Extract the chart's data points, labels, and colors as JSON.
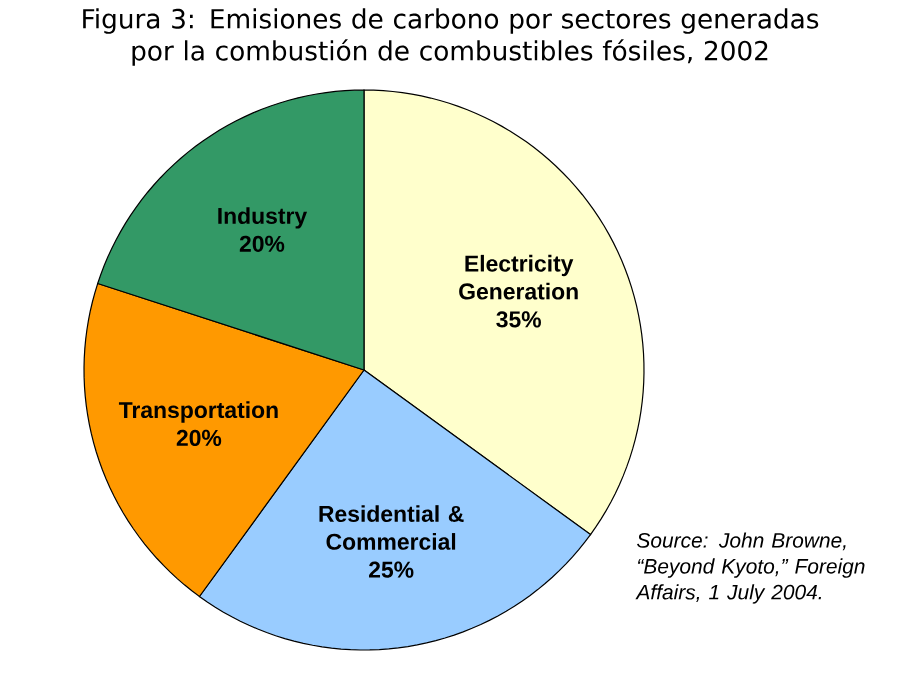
{
  "chart_data": {
    "type": "pie",
    "title": "Figura 3: Emisiones de carbono por sectores generadas por la combustión de combustibles fósiles, 2002",
    "categories": [
      "Electricity Generation",
      "Residential & Commercial",
      "Transportation",
      "Industry"
    ],
    "values": [
      35,
      25,
      20,
      20
    ],
    "value_labels": [
      "35%",
      "25%",
      "20%",
      "20%"
    ],
    "colors": [
      "#ffffcc",
      "#99ccff",
      "#ff9900",
      "#339966"
    ],
    "data_labels": true,
    "annotations": [
      "Source: John Browne, “Beyond Kyoto,” Foreign Affairs, 1 July 2004."
    ]
  }
}
